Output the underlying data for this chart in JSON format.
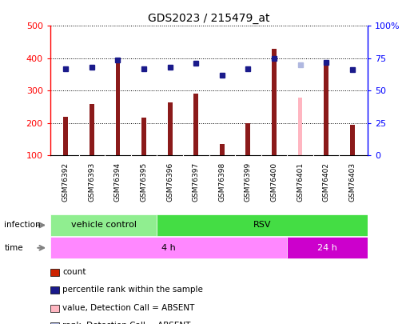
{
  "title": "GDS2023 / 215479_at",
  "samples": [
    "GSM76392",
    "GSM76393",
    "GSM76394",
    "GSM76395",
    "GSM76396",
    "GSM76397",
    "GSM76398",
    "GSM76399",
    "GSM76400",
    "GSM76401",
    "GSM76402",
    "GSM76403"
  ],
  "count_values": [
    220,
    260,
    393,
    218,
    265,
    290,
    135,
    200,
    430,
    278,
    383,
    195
  ],
  "count_colors": [
    "#8b1a1a",
    "#8b1a1a",
    "#8b1a1a",
    "#8b1a1a",
    "#8b1a1a",
    "#8b1a1a",
    "#8b1a1a",
    "#8b1a1a",
    "#8b1a1a",
    "#ffb6c1",
    "#8b1a1a",
    "#8b1a1a"
  ],
  "rank_values": [
    67,
    68,
    74,
    67,
    68,
    71,
    62,
    67,
    75,
    70,
    72,
    66
  ],
  "rank_colors": [
    "#1a1a8b",
    "#1a1a8b",
    "#1a1a8b",
    "#1a1a8b",
    "#1a1a8b",
    "#1a1a8b",
    "#1a1a8b",
    "#1a1a8b",
    "#1a1a8b",
    "#b0b8e0",
    "#1a1a8b",
    "#1a1a8b"
  ],
  "ylim_left": [
    100,
    500
  ],
  "ylim_right": [
    0,
    100
  ],
  "yticks_left": [
    100,
    200,
    300,
    400,
    500
  ],
  "yticks_right": [
    0,
    25,
    50,
    75,
    100
  ],
  "ytick_labels_right": [
    "0",
    "25",
    "50",
    "75",
    "100%"
  ],
  "bar_width": 0.18,
  "infection_groups": [
    {
      "label": "vehicle control",
      "color": "#90ee90",
      "span": [
        0,
        3
      ]
    },
    {
      "label": "RSV",
      "color": "#44dd44",
      "span": [
        4,
        11
      ]
    }
  ],
  "time_groups": [
    {
      "label": "4 h",
      "color": "#ff88ff",
      "span": [
        0,
        8
      ]
    },
    {
      "label": "24 h",
      "color": "#cc00cc",
      "span": [
        9,
        11
      ]
    }
  ],
  "xtick_bg_color": "#c8c8c8",
  "legend_items": [
    {
      "color": "#cc2200",
      "label": "count"
    },
    {
      "color": "#1a1a8b",
      "label": "percentile rank within the sample"
    },
    {
      "color": "#ffb6c1",
      "label": "value, Detection Call = ABSENT"
    },
    {
      "color": "#b0b8e0",
      "label": "rank, Detection Call = ABSENT"
    }
  ]
}
